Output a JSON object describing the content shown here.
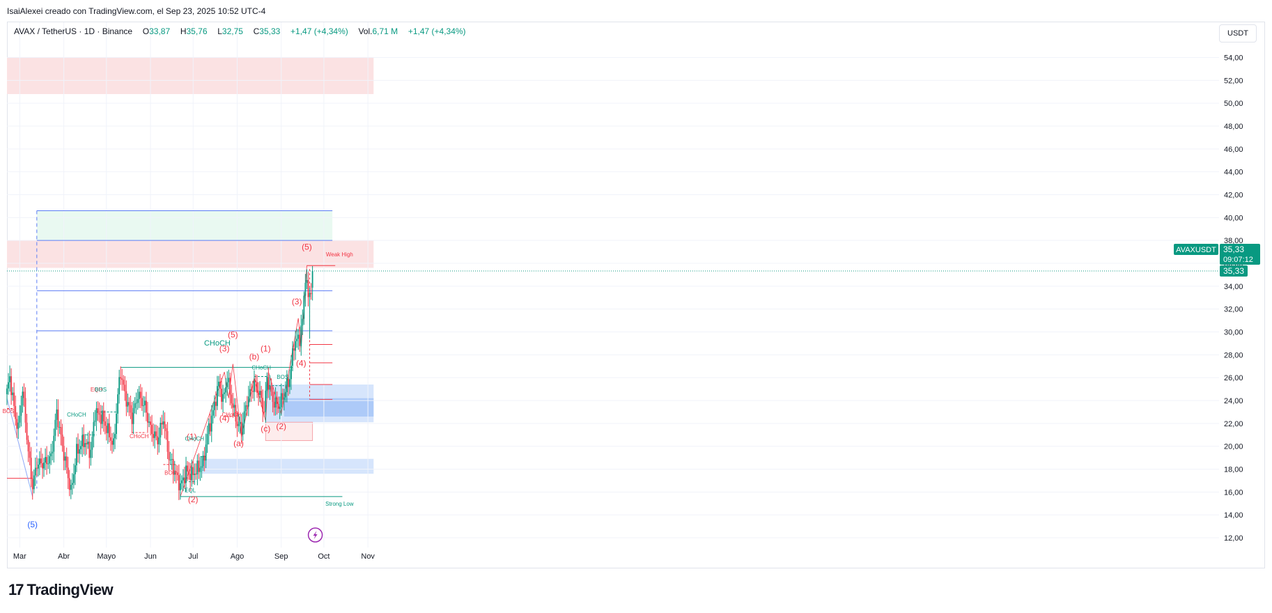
{
  "header_note": "IsaiAlexei creado con TradingView.com, el Sep 23, 2025 10:52 UTC-4",
  "legend": {
    "symbol": "AVAX / TetherUS · 1D · Binance",
    "o_label": "O",
    "o_value": "33,87",
    "h_label": "H",
    "h_value": "35,76",
    "l_label": "L",
    "l_value": "32,75",
    "c_label": "C",
    "c_value": "35,33",
    "change": "+1,47 (+4,34%)",
    "vol_label": "Vol.",
    "vol_value": "6,71 M",
    "vol_change": "+1,47 (+4,34%)"
  },
  "currency": "USDT",
  "price_tag": {
    "symbol": "AVAXUSDT",
    "price": "35,33",
    "countdown": "09:07:12",
    "last": "35,33",
    "color": "#089981"
  },
  "footer_logo": {
    "mark": "17",
    "word": "TradingView"
  },
  "colors": {
    "up": "#089981",
    "down": "#f23645",
    "supply": "#fbe2e3",
    "demand": "#cfe0fb",
    "green_zone": "#e9f9f1",
    "blue_line": "#5b7cf5",
    "red": "#f23645"
  },
  "chart_data": {
    "type": "candlestick",
    "symbol": "AVAX / TetherUS",
    "interval": "1D",
    "exchange": "Binance",
    "ylim": [
      11,
      55
    ],
    "y_ticks": [
      "12,00",
      "14,00",
      "16,00",
      "18,00",
      "20,00",
      "22,00",
      "24,00",
      "26,00",
      "28,00",
      "30,00",
      "32,00",
      "34,00",
      "36,00",
      "38,00",
      "40,00",
      "42,00",
      "44,00",
      "46,00",
      "48,00",
      "50,00",
      "52,00",
      "54,00"
    ],
    "y_tick_values": [
      12,
      14,
      16,
      18,
      20,
      22,
      24,
      26,
      28,
      30,
      32,
      34,
      36,
      38,
      40,
      42,
      44,
      46,
      48,
      50,
      52,
      54
    ],
    "x_start": "2025-02-20",
    "x_end": "2025-11-09",
    "x_ticks": [
      {
        "label": "Mar",
        "date": "2025-03-01"
      },
      {
        "label": "Abr",
        "date": "2025-04-01"
      },
      {
        "label": "Mayo",
        "date": "2025-05-01"
      },
      {
        "label": "Jun",
        "date": "2025-06-01"
      },
      {
        "label": "Jul",
        "date": "2025-07-01"
      },
      {
        "label": "Ago",
        "date": "2025-08-01"
      },
      {
        "label": "Sep",
        "date": "2025-09-01"
      },
      {
        "label": "Oct",
        "date": "2025-10-01"
      },
      {
        "label": "Nov",
        "date": "2025-11-01"
      }
    ],
    "path_points": [
      [
        "2025-02-20",
        24.8
      ],
      [
        "2025-02-22",
        26.0
      ],
      [
        "2025-02-26",
        22.5
      ],
      [
        "2025-02-28",
        21.5
      ],
      [
        "2025-03-03",
        25.0
      ],
      [
        "2025-03-07",
        19.5
      ],
      [
        "2025-03-10",
        16.5
      ],
      [
        "2025-03-13",
        18.5
      ],
      [
        "2025-03-18",
        18.5
      ],
      [
        "2025-03-23",
        19.0
      ],
      [
        "2025-03-27",
        23.0
      ],
      [
        "2025-03-31",
        20.0
      ],
      [
        "2025-04-03",
        18.0
      ],
      [
        "2025-04-06",
        16.0
      ],
      [
        "2025-04-10",
        19.5
      ],
      [
        "2025-04-15",
        20.5
      ],
      [
        "2025-04-20",
        19.5
      ],
      [
        "2025-04-23",
        23.0
      ],
      [
        "2025-04-28",
        22.5
      ],
      [
        "2025-05-03",
        21.0
      ],
      [
        "2025-05-06",
        20.0
      ],
      [
        "2025-05-09",
        24.5
      ],
      [
        "2025-05-11",
        26.5
      ],
      [
        "2025-05-14",
        24.5
      ],
      [
        "2025-05-19",
        22.5
      ],
      [
        "2025-05-23",
        24.5
      ],
      [
        "2025-05-28",
        23.5
      ],
      [
        "2025-06-01",
        21.5
      ],
      [
        "2025-06-06",
        20.5
      ],
      [
        "2025-06-10",
        22.5
      ],
      [
        "2025-06-14",
        19.0
      ],
      [
        "2025-06-19",
        17.5
      ],
      [
        "2025-06-22",
        16.5
      ],
      [
        "2025-06-26",
        17.8
      ],
      [
        "2025-06-30",
        17.5
      ],
      [
        "2025-07-04",
        18.0
      ],
      [
        "2025-07-08",
        18.5
      ],
      [
        "2025-07-11",
        21.0
      ],
      [
        "2025-07-15",
        23.0
      ],
      [
        "2025-07-19",
        25.5
      ],
      [
        "2025-07-22",
        24.0
      ],
      [
        "2025-07-25",
        26.0
      ],
      [
        "2025-07-28",
        24.0
      ],
      [
        "2025-08-01",
        22.0
      ],
      [
        "2025-08-04",
        21.5
      ],
      [
        "2025-08-08",
        24.0
      ],
      [
        "2025-08-13",
        25.5
      ],
      [
        "2025-08-17",
        24.5
      ],
      [
        "2025-08-20",
        23.0
      ],
      [
        "2025-08-22",
        26.0
      ],
      [
        "2025-08-26",
        24.0
      ],
      [
        "2025-08-30",
        23.5
      ],
      [
        "2025-09-03",
        24.5
      ],
      [
        "2025-09-07",
        26.0
      ],
      [
        "2025-09-10",
        29.0
      ],
      [
        "2025-09-14",
        29.5
      ],
      [
        "2025-09-16",
        31.0
      ],
      [
        "2025-09-18",
        35.0
      ],
      [
        "2025-09-20",
        33.0
      ],
      [
        "2025-09-22",
        33.87
      ],
      [
        "2025-09-23",
        35.33
      ]
    ],
    "zones": [
      {
        "name": "supply-top",
        "y1": 50.8,
        "y2": 54.0,
        "x1": "2025-02-20",
        "x2": "2025-11-05",
        "kind": "supply"
      },
      {
        "name": "supply-mid",
        "y1": 35.6,
        "y2": 38.0,
        "x1": "2025-02-20",
        "x2": "2025-11-05",
        "kind": "supply"
      },
      {
        "name": "green-zone",
        "y1": 38.0,
        "y2": 40.6,
        "x1": "2025-03-13",
        "x2": "2025-10-07",
        "kind": "green"
      },
      {
        "name": "demand-upper",
        "y1": 22.1,
        "y2": 25.4,
        "x1": "2025-08-21",
        "x2": "2025-11-05",
        "kind": "demand"
      },
      {
        "name": "demand-inner",
        "y1": 22.6,
        "y2": 24.2,
        "x1": "2025-09-03",
        "x2": "2025-11-05",
        "kind": "demand"
      },
      {
        "name": "demand-lower",
        "y1": 17.6,
        "y2": 18.9,
        "x1": "2025-07-07",
        "x2": "2025-11-05",
        "kind": "demand"
      },
      {
        "name": "red-outline-box",
        "y1": 20.5,
        "y2": 22.1,
        "x1": "2025-08-21",
        "x2": "2025-09-23",
        "kind": "redbox"
      }
    ],
    "levels": [
      {
        "y": 40.6,
        "x1": "2025-03-13",
        "x2": "2025-10-07",
        "color": "#5b7cf5"
      },
      {
        "y": 38.0,
        "x1": "2025-03-13",
        "x2": "2025-10-07",
        "color": "#5b7cf5"
      },
      {
        "y": 33.6,
        "x1": "2025-03-13",
        "x2": "2025-10-07",
        "color": "#5b7cf5"
      },
      {
        "y": 30.1,
        "x1": "2025-03-13",
        "x2": "2025-10-07",
        "color": "#5b7cf5"
      },
      {
        "y": 26.9,
        "x1": "2025-05-11",
        "x2": "2025-09-09",
        "color": "#089981"
      },
      {
        "y": 17.2,
        "x1": "2025-02-20",
        "x2": "2025-03-10",
        "color": "#f23645"
      },
      {
        "y": 15.6,
        "x1": "2025-06-22",
        "x2": "2025-10-14",
        "color": "#089981"
      },
      {
        "y": 35.8,
        "x1": "2025-09-19",
        "x2": "2025-10-09",
        "color": "#f23645"
      },
      {
        "y": 28.9,
        "x1": "2025-09-21",
        "x2": "2025-10-07",
        "color": "#f23645"
      },
      {
        "y": 27.3,
        "x1": "2025-09-21",
        "x2": "2025-10-07",
        "color": "#f23645"
      },
      {
        "y": 25.4,
        "x1": "2025-09-21",
        "x2": "2025-10-07",
        "color": "#f23645"
      },
      {
        "y": 24.1,
        "x1": "2025-09-21",
        "x2": "2025-10-07",
        "color": "#f23645"
      }
    ],
    "annotations": [
      {
        "text": "CHoCH",
        "date": "2025-07-18",
        "y": 28.8,
        "color": "#089981",
        "size": 11
      },
      {
        "text": "(3)",
        "date": "2025-07-23",
        "y": 28.3,
        "color": "#f23645",
        "size": 12
      },
      {
        "text": "(5)",
        "date": "2025-07-29",
        "y": 29.5,
        "color": "#f23645",
        "size": 12
      },
      {
        "text": "(b)",
        "date": "2025-08-13",
        "y": 27.6,
        "color": "#f23645",
        "size": 12
      },
      {
        "text": "(1)",
        "date": "2025-08-21",
        "y": 28.3,
        "color": "#f23645",
        "size": 12
      },
      {
        "text": "CHoCH",
        "date": "2025-08-18",
        "y": 26.7,
        "color": "#089981",
        "size": 8
      },
      {
        "text": "BOS",
        "date": "2025-09-02",
        "y": 25.9,
        "color": "#089981",
        "size": 8
      },
      {
        "text": "(3)",
        "date": "2025-09-12",
        "y": 32.4,
        "color": "#f23645",
        "size": 12
      },
      {
        "text": "(4)",
        "date": "2025-09-15",
        "y": 27.0,
        "color": "#f23645",
        "size": 12
      },
      {
        "text": "(5)",
        "date": "2025-09-19",
        "y": 37.2,
        "color": "#f23645",
        "size": 12
      },
      {
        "text": "Weak High",
        "date": "2025-10-12",
        "y": 36.6,
        "color": "#f23645",
        "size": 8
      },
      {
        "text": "Strong Low",
        "date": "2025-10-12",
        "y": 14.8,
        "color": "#089981",
        "size": 8
      },
      {
        "text": "(4)",
        "date": "2025-07-23",
        "y": 22.2,
        "color": "#f23645",
        "size": 12
      },
      {
        "text": "CHoCH",
        "date": "2025-07-28",
        "y": 22.6,
        "color": "#f23645",
        "size": 8
      },
      {
        "text": "(a)",
        "date": "2025-08-02",
        "y": 20.0,
        "color": "#f23645",
        "size": 12
      },
      {
        "text": "(c)",
        "date": "2025-08-21",
        "y": 21.3,
        "color": "#f23645",
        "size": 12
      },
      {
        "text": "(2)",
        "date": "2025-09-01",
        "y": 21.5,
        "color": "#f23645",
        "size": 12
      },
      {
        "text": "(1)",
        "date": "2025-06-30",
        "y": 20.6,
        "color": "#f23645",
        "size": 12
      },
      {
        "text": "CHoCH",
        "date": "2025-07-02",
        "y": 20.5,
        "color": "#089981",
        "size": 8
      },
      {
        "text": "(2)",
        "date": "2025-07-01",
        "y": 15.1,
        "color": "#f23645",
        "size": 12
      },
      {
        "text": "EQL",
        "date": "2025-06-29",
        "y": 16.0,
        "color": "#089981",
        "size": 8
      },
      {
        "text": "BOS",
        "date": "2025-06-15",
        "y": 17.5,
        "color": "#f23645",
        "size": 8
      },
      {
        "text": "CHoCH",
        "date": "2025-05-24",
        "y": 20.7,
        "color": "#f23645",
        "size": 8
      },
      {
        "text": "EQH",
        "date": "2025-04-24",
        "y": 24.8,
        "color": "#f23645",
        "size": 8
      },
      {
        "text": "BOS",
        "date": "2025-04-27",
        "y": 24.8,
        "color": "#089981",
        "size": 8
      },
      {
        "text": "CHoCH",
        "date": "2025-04-10",
        "y": 22.6,
        "color": "#089981",
        "size": 8
      },
      {
        "text": "BOS",
        "date": "2025-02-21",
        "y": 22.9,
        "color": "#f23645",
        "size": 8
      },
      {
        "text": "(5)",
        "date": "2025-03-10",
        "y": 12.9,
        "color": "#2962ff",
        "size": 12
      }
    ],
    "last_price": 35.33
  }
}
